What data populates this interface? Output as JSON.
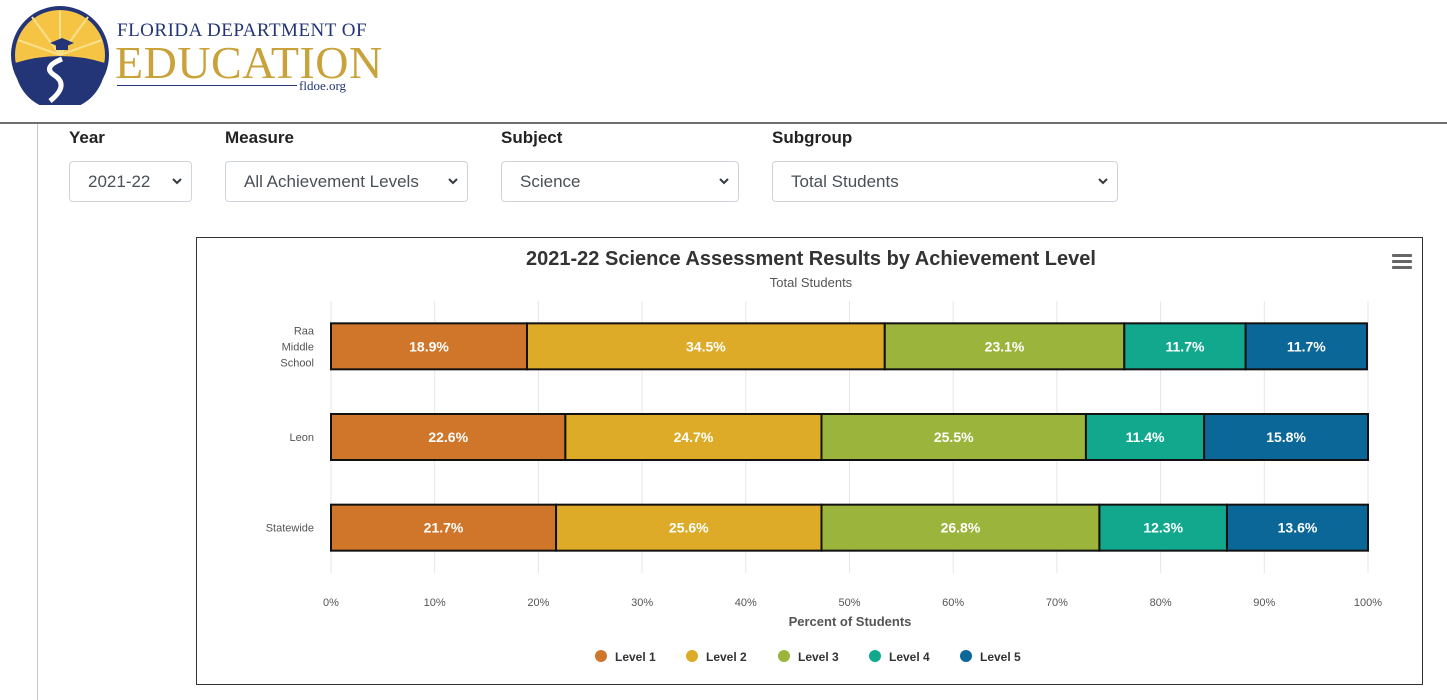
{
  "header": {
    "logo_line1": "FLORIDA DEPARTMENT OF",
    "logo_line2": "EDUCATION",
    "logo_line3": "fldoe.org"
  },
  "filters": {
    "year": {
      "label": "Year",
      "value": "2021-22"
    },
    "measure": {
      "label": "Measure",
      "value": "All Achievement Levels"
    },
    "subject": {
      "label": "Subject",
      "value": "Science"
    },
    "subgroup": {
      "label": "Subgroup",
      "value": "Total Students"
    }
  },
  "chart_data": {
    "type": "bar",
    "orientation": "horizontal",
    "stacked": true,
    "title": "2021-22 Science Assessment Results by Achievement Level",
    "subtitle": "Total Students",
    "categories": [
      "Raa Middle School",
      "Leon",
      "Statewide"
    ],
    "series": [
      {
        "name": "Level 1",
        "color": "#cf762b",
        "values": [
          18.9,
          22.6,
          21.7
        ]
      },
      {
        "name": "Level 2",
        "color": "#ddab28",
        "values": [
          34.5,
          24.7,
          25.6
        ]
      },
      {
        "name": "Level 3",
        "color": "#9bb43c",
        "values": [
          23.1,
          25.5,
          26.8
        ]
      },
      {
        "name": "Level 4",
        "color": "#12a88e",
        "values": [
          11.7,
          11.4,
          12.3
        ]
      },
      {
        "name": "Level 5",
        "color": "#0b6797",
        "values": [
          11.7,
          15.8,
          13.6
        ]
      }
    ],
    "xlabel": "Percent of Students",
    "xlim": [
      0,
      100
    ],
    "xticks": [
      "0%",
      "10%",
      "20%",
      "30%",
      "40%",
      "50%",
      "60%",
      "70%",
      "80%",
      "90%",
      "100%"
    ],
    "grid": true,
    "legend_position": "bottom"
  }
}
